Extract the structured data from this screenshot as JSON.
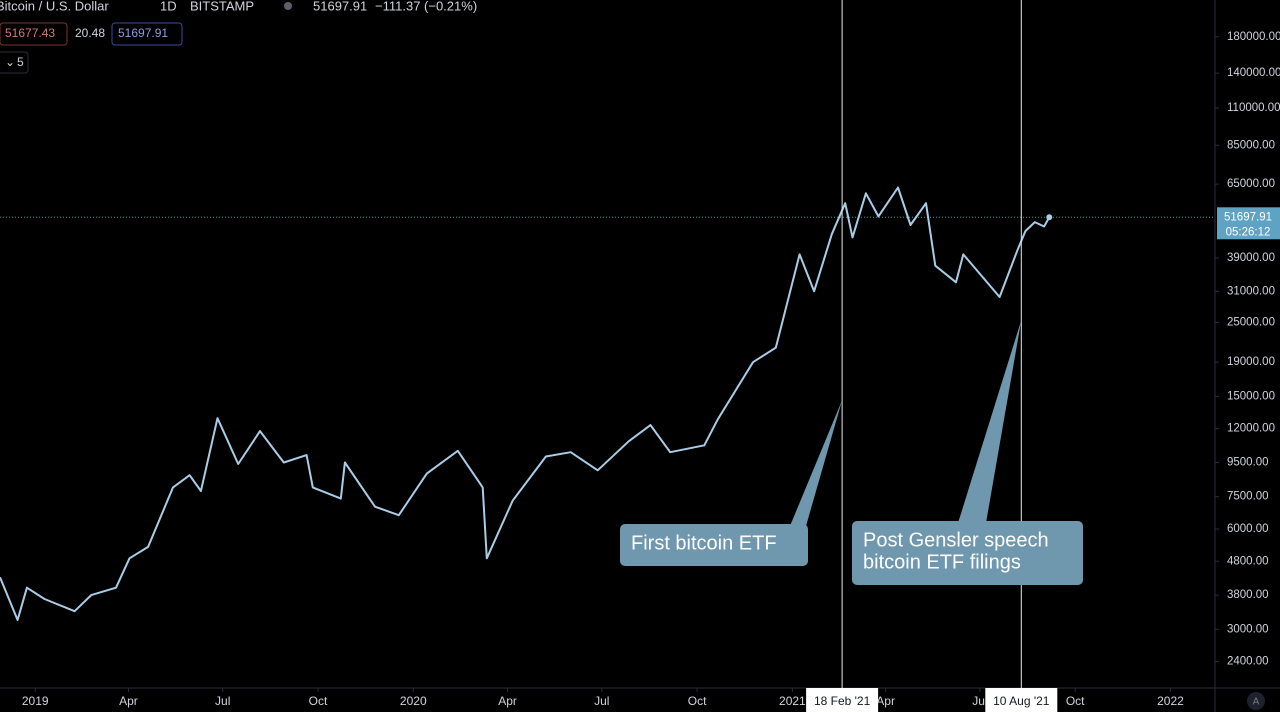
{
  "chart_data": {
    "type": "line",
    "ui": {
      "symbol": "Bitcoin / U.S. Dollar",
      "interval": "1D",
      "exchange": "BITSTAMP",
      "last": "51697.91",
      "change": "−111.37 (−0.21%)",
      "ind_a": "51677.43",
      "ind_b": "20.48",
      "ind_c": "51697.91",
      "collapse": "5",
      "countdown": "05:26:12",
      "auto_button": "A"
    },
    "x": [
      "2018-11-28",
      "2018-12-15",
      "2018-12-24",
      "2019-01-10",
      "2019-02-08",
      "2019-02-24",
      "2019-03-20",
      "2019-04-02",
      "2019-04-20",
      "2019-05-14",
      "2019-05-30",
      "2019-06-10",
      "2019-06-26",
      "2019-07-16",
      "2019-08-06",
      "2019-08-29",
      "2019-09-20",
      "2019-09-26",
      "2019-10-23",
      "2019-10-27",
      "2019-11-25",
      "2019-12-18",
      "2020-01-14",
      "2020-02-13",
      "2020-03-08",
      "2020-03-12",
      "2020-04-06",
      "2020-05-08",
      "2020-06-01",
      "2020-06-27",
      "2020-07-27",
      "2020-08-17",
      "2020-09-05",
      "2020-10-08",
      "2020-10-21",
      "2020-11-24",
      "2020-12-16",
      "2021-01-08",
      "2021-01-22",
      "2021-02-08",
      "2021-02-21",
      "2021-02-28",
      "2021-03-13",
      "2021-03-25",
      "2021-04-13",
      "2021-04-25",
      "2021-05-10",
      "2021-05-19",
      "2021-06-08",
      "2021-06-15",
      "2021-07-20",
      "2021-08-06",
      "2021-08-14",
      "2021-08-23",
      "2021-09-01",
      "2021-09-06"
    ],
    "values": [
      4300,
      3200,
      4000,
      3700,
      3400,
      3800,
      4000,
      4900,
      5300,
      8000,
      8700,
      7800,
      12900,
      9400,
      11800,
      9500,
      10000,
      8000,
      7400,
      9500,
      7000,
      6600,
      8800,
      10300,
      8000,
      4900,
      7300,
      9900,
      10200,
      9000,
      11000,
      12300,
      10200,
      10700,
      12800,
      19000,
      21000,
      40000,
      31000,
      46000,
      57000,
      45000,
      61000,
      52000,
      63500,
      49000,
      57000,
      37000,
      33000,
      40000,
      29800,
      41000,
      47000,
      50000,
      48500,
      51697.91
    ],
    "color": "#a9cde6",
    "log_y": true,
    "xlim": [
      "2018-11-28",
      "2022-02-13"
    ],
    "ylim": [
      2000,
      232000
    ],
    "xticks": [
      {
        "value": "2019-01-01",
        "label": "2019"
      },
      {
        "value": "2019-04-01",
        "label": "Apr"
      },
      {
        "value": "2019-07-01",
        "label": "Jul"
      },
      {
        "value": "2019-10-01",
        "label": "Oct"
      },
      {
        "value": "2020-01-01",
        "label": "2020"
      },
      {
        "value": "2020-04-01",
        "label": "Apr"
      },
      {
        "value": "2020-07-01",
        "label": "Jul"
      },
      {
        "value": "2020-10-01",
        "label": "Oct"
      },
      {
        "value": "2021-01-01",
        "label": "2021"
      },
      {
        "value": "2021-04-01",
        "label": "Apr"
      },
      {
        "value": "2021-07-01",
        "label": "Jul"
      },
      {
        "value": "2021-10-01",
        "label": "Oct"
      },
      {
        "value": "2022-01-01",
        "label": "2022"
      }
    ],
    "yticks": [
      {
        "value": 180000,
        "label": "180000.00"
      },
      {
        "value": 140000,
        "label": "140000.00"
      },
      {
        "value": 110000,
        "label": "110000.00"
      },
      {
        "value": 85000,
        "label": "85000.00"
      },
      {
        "value": 65000,
        "label": "65000.00"
      },
      {
        "value": 39000,
        "label": "39000.00"
      },
      {
        "value": 31000,
        "label": "31000.00"
      },
      {
        "value": 25000,
        "label": "25000.00"
      },
      {
        "value": 19000,
        "label": "19000.00"
      },
      {
        "value": 15000,
        "label": "15000.00"
      },
      {
        "value": 12000,
        "label": "12000.00"
      },
      {
        "value": 9500,
        "label": "9500.00"
      },
      {
        "value": 7500,
        "label": "7500.00"
      },
      {
        "value": 6000,
        "label": "6000.00"
      },
      {
        "value": 4800,
        "label": "4800.00"
      },
      {
        "value": 3800,
        "label": "3800.00"
      },
      {
        "value": 3000,
        "label": "3000.00"
      },
      {
        "value": 2400,
        "label": "2400.00"
      }
    ],
    "event_lines": [
      {
        "x": "2021-02-18",
        "label": "18 Feb '21"
      },
      {
        "x": "2021-08-10",
        "label": "10 Aug '21"
      }
    ],
    "annotations": [
      {
        "lines": [
          "First bitcoin ETF"
        ],
        "x": "2021-02-18",
        "y": 14600
      },
      {
        "lines": [
          "Post Gensler speech",
          "bitcoin ETF filings"
        ],
        "x": "2021-08-10",
        "y": 25400
      }
    ]
  }
}
